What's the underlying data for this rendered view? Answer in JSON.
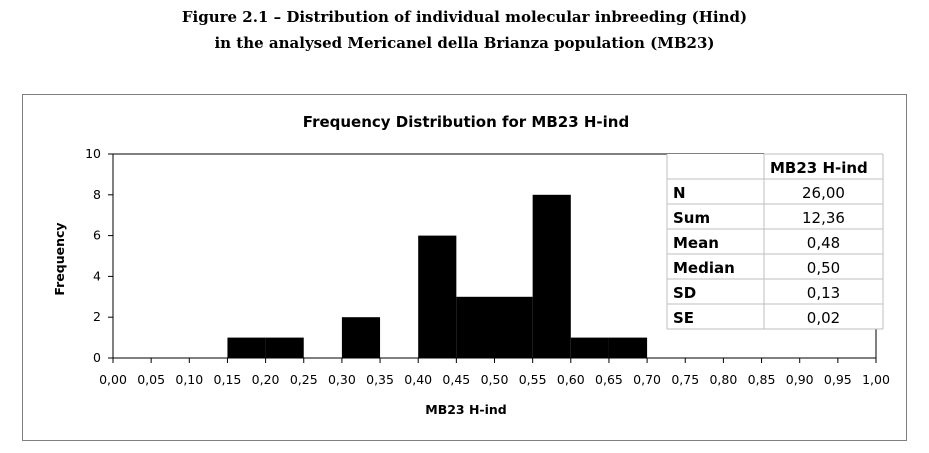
{
  "figure": {
    "caption_line1": "Figure 2.1 – Distribution of individual molecular inbreeding (Hind)",
    "caption_line2": "in the analysed Mericanel della Brianza population (MB23)"
  },
  "chart_data": {
    "type": "bar",
    "title": "Frequency Distribution for MB23 H-ind",
    "xlabel": "MB23 H-ind",
    "ylabel": "Frequency",
    "ylim": [
      0,
      10
    ],
    "y_ticks": [
      "0",
      "2",
      "4",
      "6",
      "8",
      "10"
    ],
    "x_ticks": [
      "0,00",
      "0,05",
      "0,10",
      "0,15",
      "0,20",
      "0,25",
      "0,30",
      "0,35",
      "0,40",
      "0,45",
      "0,50",
      "0,55",
      "0,60",
      "0,65",
      "0,70",
      "0,75",
      "0,80",
      "0,85",
      "0,90",
      "0,95",
      "1,00"
    ],
    "bin_width": 0.05,
    "bins": [
      {
        "start": 0.15,
        "end": 0.2,
        "value": 1
      },
      {
        "start": 0.2,
        "end": 0.25,
        "value": 1
      },
      {
        "start": 0.3,
        "end": 0.35,
        "value": 2
      },
      {
        "start": 0.4,
        "end": 0.45,
        "value": 6
      },
      {
        "start": 0.45,
        "end": 0.5,
        "value": 3
      },
      {
        "start": 0.5,
        "end": 0.55,
        "value": 3
      },
      {
        "start": 0.55,
        "end": 0.6,
        "value": 8
      },
      {
        "start": 0.6,
        "end": 0.65,
        "value": 1
      },
      {
        "start": 0.65,
        "end": 0.7,
        "value": 1
      }
    ],
    "grid": false,
    "bar_color": "#000000"
  },
  "stats_table": {
    "header": "MB23 H-ind",
    "rows": [
      {
        "label": "N",
        "value": "26,00"
      },
      {
        "label": "Sum",
        "value": "12,36"
      },
      {
        "label": "Mean",
        "value": "0,48"
      },
      {
        "label": "Median",
        "value": "0,50"
      },
      {
        "label": "SD",
        "value": "0,13"
      },
      {
        "label": "SE",
        "value": "0,02"
      }
    ]
  }
}
